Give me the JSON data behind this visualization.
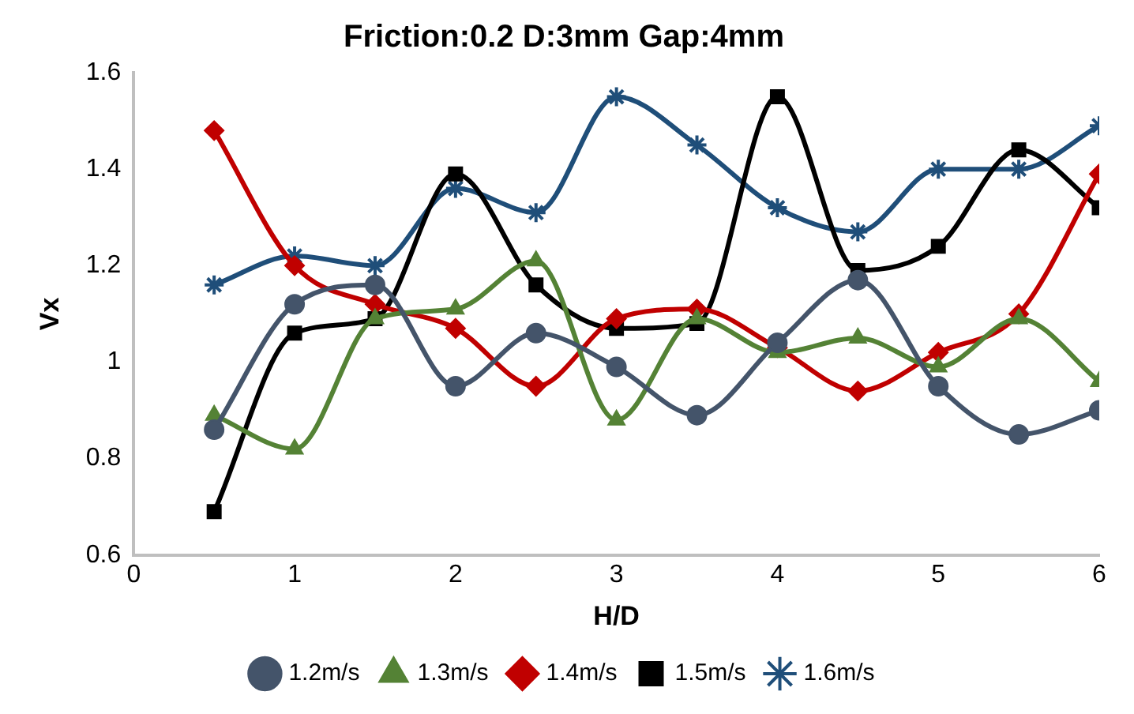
{
  "chart_data": {
    "type": "line",
    "title": "Friction:0.2 D:3mm Gap:4mm",
    "xlabel": "H/D",
    "ylabel": "Vx",
    "x": [
      0.5,
      1,
      1.5,
      2,
      2.5,
      3,
      3.5,
      4,
      4.5,
      5,
      5.5,
      6
    ],
    "series": [
      {
        "name": "1.2m/s",
        "color": "#44546a",
        "marker": "circle",
        "values": [
          0.86,
          1.12,
          1.16,
          0.95,
          1.06,
          0.99,
          0.89,
          1.04,
          1.17,
          0.95,
          0.85,
          0.9
        ]
      },
      {
        "name": "1.3m/s",
        "color": "#548235",
        "marker": "triangle",
        "values": [
          0.89,
          0.82,
          1.09,
          1.11,
          1.21,
          0.88,
          1.09,
          1.02,
          1.05,
          0.99,
          1.09,
          0.96
        ]
      },
      {
        "name": "1.4m/s",
        "color": "#c00000",
        "marker": "diamond",
        "values": [
          1.48,
          1.2,
          1.12,
          1.07,
          0.95,
          1.09,
          1.11,
          1.03,
          0.94,
          1.02,
          1.1,
          1.39
        ]
      },
      {
        "name": "1.5m/s",
        "color": "#000000",
        "marker": "square",
        "values": [
          0.69,
          1.06,
          1.09,
          1.39,
          1.16,
          1.07,
          1.08,
          1.55,
          1.19,
          1.24,
          1.44,
          1.32
        ]
      },
      {
        "name": "1.6m/s",
        "color": "#1f4e79",
        "marker": "cross",
        "values": [
          1.16,
          1.22,
          1.2,
          1.36,
          1.31,
          1.55,
          1.45,
          1.32,
          1.27,
          1.4,
          1.4,
          1.49
        ]
      }
    ],
    "xlim": [
      0,
      6
    ],
    "xticks": [
      0,
      1,
      2,
      3,
      4,
      5,
      6
    ],
    "ylim": [
      0.6,
      1.6
    ],
    "yticks": [
      0.6,
      0.8,
      1,
      1.2,
      1.4,
      1.6
    ],
    "grid": false,
    "legend": "bottom"
  }
}
